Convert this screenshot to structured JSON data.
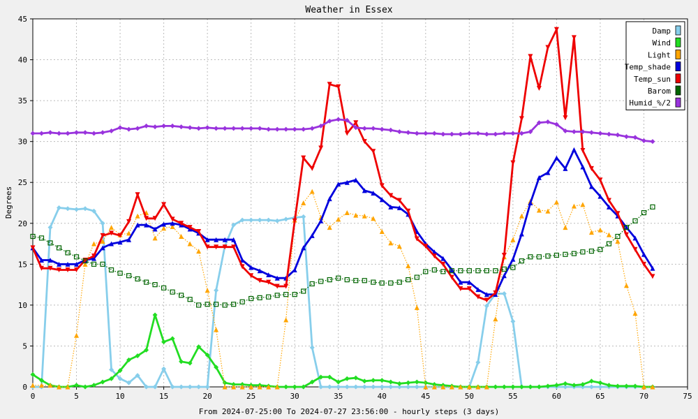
{
  "chart_data": {
    "type": "line",
    "title": "Weather in Essex",
    "xlabel": "From 2024-07-25:00 To 2024-07-27 23:56:00 - hourly steps (3 days)",
    "ylabel": "Degrees",
    "xlim": [
      0,
      75
    ],
    "ylim": [
      0,
      45
    ],
    "x_ticks": [
      0,
      5,
      10,
      15,
      20,
      25,
      30,
      35,
      40,
      45,
      50,
      55,
      60,
      65,
      70,
      75
    ],
    "y_ticks": [
      0,
      5,
      10,
      15,
      20,
      25,
      30,
      35,
      40,
      45
    ],
    "grid": true,
    "legend_position": "top-right",
    "series": [
      {
        "name": "Damp",
        "color": "#87ceeb",
        "style": "solid",
        "marker": "diamond",
        "values": [
          0,
          0,
          19.5,
          21.9,
          21.8,
          21.7,
          21.8,
          21.5,
          20,
          2.1,
          1,
          0.5,
          1.4,
          0,
          0,
          2.2,
          0,
          0,
          0,
          0,
          0,
          11.8,
          17.2,
          19.8,
          20.4,
          20.4,
          20.4,
          20.4,
          20.3,
          20.5,
          20.7,
          20.8,
          4.8,
          0,
          0,
          0,
          0,
          0,
          0,
          0,
          0,
          0,
          0,
          0,
          0,
          0,
          0,
          0,
          0,
          0,
          0,
          3,
          9.9,
          11.4,
          11.4,
          8,
          0,
          0,
          0,
          0,
          0,
          0,
          0,
          0,
          0,
          0,
          0,
          0,
          0,
          0,
          0,
          0
        ]
      },
      {
        "name": "Wind",
        "color": "#22dd22",
        "style": "solid",
        "marker": "diamond",
        "values": [
          1.5,
          0.8,
          0.2,
          0,
          0,
          0.2,
          0,
          0.2,
          0.6,
          1,
          2,
          3.3,
          3.8,
          4.5,
          8.8,
          5.5,
          5.9,
          3.1,
          2.9,
          4.9,
          3.9,
          2.4,
          0.5,
          0.3,
          0.3,
          0.2,
          0.2,
          0.1,
          0,
          0,
          0,
          0,
          0.6,
          1.2,
          1.2,
          0.6,
          1,
          1.1,
          0.7,
          0.8,
          0.8,
          0.6,
          0.4,
          0.5,
          0.6,
          0.5,
          0.3,
          0.2,
          0.1,
          0,
          0,
          0,
          0,
          0,
          0,
          0,
          0,
          0,
          0,
          0.1,
          0.2,
          0.4,
          0.2,
          0.3,
          0.7,
          0.5,
          0.2,
          0.1,
          0.1,
          0.1,
          0,
          0
        ]
      },
      {
        "name": "Light",
        "color": "#ffa500",
        "style": "dotted",
        "marker": "triangle",
        "values": [
          0.2,
          0.2,
          0.2,
          0,
          0,
          6.3,
          15,
          17.5,
          17.8,
          19.5,
          18.6,
          18.8,
          20.9,
          21.3,
          18.2,
          19.4,
          19.6,
          18.4,
          17.5,
          16.6,
          11.8,
          7,
          0,
          0,
          0,
          0,
          0,
          0,
          0,
          8.2,
          20.4,
          22.5,
          23.9,
          20.7,
          19.5,
          20.5,
          21.3,
          21,
          20.9,
          20.6,
          19,
          17.6,
          17.2,
          14.8,
          9.7,
          0,
          0,
          0,
          0,
          0,
          0,
          0,
          0,
          8.3,
          15.9,
          18,
          20.9,
          22.7,
          21.6,
          21.5,
          22.6,
          19.5,
          22.1,
          22.3,
          18.9,
          19.2,
          18.6,
          17.8,
          12.4,
          9,
          0,
          0
        ]
      },
      {
        "name": "Temp_shade",
        "color": "#0000dd",
        "style": "solid",
        "marker": "triangle",
        "values": [
          17,
          15.5,
          15.5,
          15,
          15,
          15,
          15.5,
          15.7,
          17,
          17.5,
          17.7,
          18,
          19.8,
          19.8,
          19.3,
          19.9,
          20,
          19.8,
          19.3,
          18.8,
          18,
          18,
          18,
          18,
          15.5,
          14.6,
          14.2,
          13.7,
          13.3,
          13.3,
          14.3,
          17,
          18.5,
          20.3,
          23,
          24.8,
          25,
          25.3,
          24,
          23.7,
          22.9,
          22,
          21.9,
          21.1,
          19,
          17.5,
          16.5,
          15.7,
          14.3,
          12.8,
          12.8,
          11.9,
          11.3,
          11.3,
          13.6,
          15.6,
          18.7,
          22.5,
          25.6,
          26.2,
          28,
          26.7,
          29,
          26.9,
          24.5,
          23.3,
          22,
          20.9,
          19.5,
          18.2,
          16.2,
          14.5
        ]
      },
      {
        "name": "Temp_sun",
        "color": "#ee0000",
        "style": "solid",
        "marker": "triangle-down",
        "values": [
          17,
          14.5,
          14.5,
          14.3,
          14.3,
          14.3,
          15.5,
          16,
          18.5,
          18.8,
          18.5,
          20.2,
          23.5,
          20.6,
          20.6,
          22.3,
          20.5,
          20,
          19.5,
          19,
          17.1,
          17.1,
          17.1,
          17.1,
          14.7,
          13.6,
          13,
          12.8,
          12.3,
          12.3,
          20.3,
          28,
          26.7,
          29.2,
          37,
          36.7,
          31,
          32.3,
          30,
          28.8,
          24.6,
          23.4,
          22.8,
          21.5,
          18.1,
          17.2,
          16,
          15,
          13.4,
          12,
          12,
          11,
          10.6,
          11.5,
          16.1,
          27.4,
          32.8,
          40.4,
          36.5,
          41.5,
          43.7,
          32.9,
          42.7,
          28.9,
          26.7,
          25.3,
          22.8,
          21.2,
          18.6,
          16.8,
          15,
          13.5
        ]
      },
      {
        "name": "Barom",
        "color": "#006400",
        "style": "dotted",
        "marker": "square",
        "values": [
          18.4,
          18.2,
          17.6,
          17,
          16.4,
          15.9,
          15.4,
          15,
          15,
          14.3,
          13.9,
          13.6,
          13.2,
          12.8,
          12.5,
          12.1,
          11.6,
          11.2,
          10.7,
          10,
          10.1,
          10.1,
          10,
          10.1,
          10.4,
          10.8,
          10.9,
          11,
          11.2,
          11.3,
          11.3,
          11.7,
          12.6,
          12.9,
          13.1,
          13.3,
          13.1,
          13,
          13,
          12.8,
          12.7,
          12.7,
          12.8,
          13.1,
          13.4,
          14.1,
          14.3,
          14.1,
          14.2,
          14.2,
          14.2,
          14.2,
          14.2,
          14.2,
          14.4,
          14.6,
          15.4,
          15.9,
          15.9,
          16,
          16.1,
          16.2,
          16.3,
          16.5,
          16.6,
          16.8,
          17.5,
          18.4,
          19.5,
          20.3,
          21.3,
          22
        ]
      },
      {
        "name": "Humid_%/2",
        "color": "#9933dd",
        "style": "solid",
        "marker": "diamond",
        "values": [
          31,
          31,
          31.1,
          31,
          31,
          31.1,
          31.1,
          31,
          31.1,
          31.3,
          31.7,
          31.5,
          31.6,
          31.9,
          31.8,
          31.9,
          31.9,
          31.8,
          31.7,
          31.6,
          31.7,
          31.6,
          31.6,
          31.6,
          31.6,
          31.6,
          31.6,
          31.5,
          31.5,
          31.5,
          31.5,
          31.5,
          31.6,
          31.9,
          32.5,
          32.7,
          32.6,
          31.7,
          31.6,
          31.6,
          31.5,
          31.4,
          31.2,
          31.1,
          31,
          31,
          31,
          30.9,
          30.9,
          30.9,
          31,
          31,
          30.9,
          30.9,
          31,
          31,
          31,
          31.2,
          32.3,
          32.4,
          32.1,
          31.3,
          31.2,
          31.2,
          31.1,
          31,
          30.9,
          30.8,
          30.6,
          30.5,
          30.1,
          30
        ]
      }
    ]
  }
}
